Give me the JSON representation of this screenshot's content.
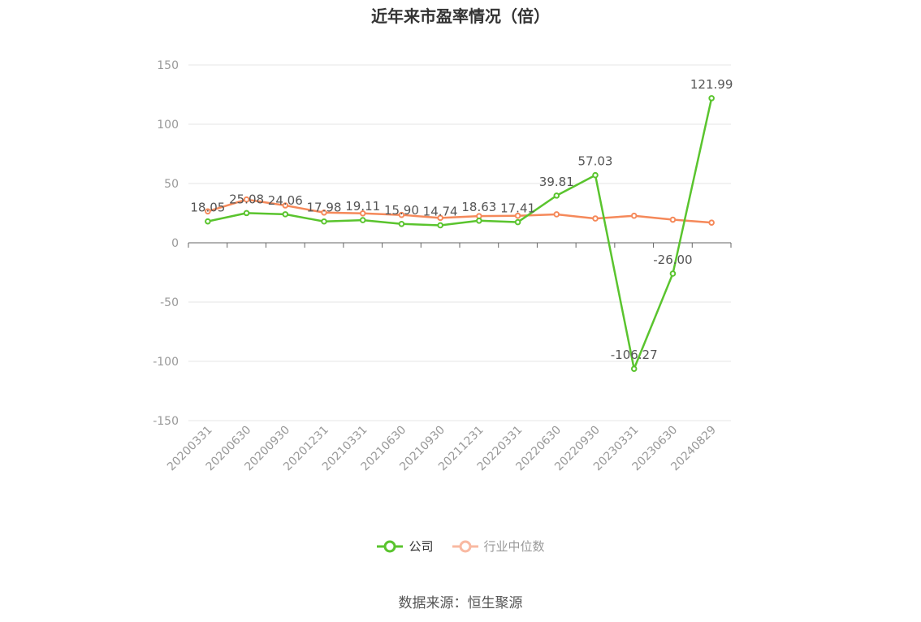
{
  "title": "近年来市盈率情况（倍）",
  "source": "数据来源：恒生聚源",
  "colors": {
    "company": "#5ac42e",
    "industry": "#f5895a",
    "industry_legend": "#f9b9a2",
    "grid": "#e6e6e6",
    "axis": "#666666"
  },
  "chart_data": {
    "type": "line",
    "title": "近年来市盈率情况（倍）",
    "xlabel": "",
    "ylabel": "",
    "ylim": [
      -150,
      150
    ],
    "yticks": [
      150,
      100,
      50,
      0,
      -50,
      -100,
      -150
    ],
    "grid": true,
    "legend_position": "bottom-center",
    "categories": [
      "20200331",
      "20200630",
      "20200930",
      "20201231",
      "20210331",
      "20210630",
      "20210930",
      "20211231",
      "20220331",
      "20220630",
      "20220930",
      "20230331",
      "20230630",
      "20240829"
    ],
    "series": [
      {
        "name": "公司",
        "values": [
          18.05,
          25.08,
          24.06,
          17.98,
          19.11,
          15.9,
          14.74,
          18.63,
          17.41,
          39.81,
          57.03,
          -106.27,
          -26.0,
          121.99
        ],
        "labels": [
          "18.05",
          "25.08",
          "24.06",
          "17.98",
          "19.11",
          "15.90",
          "14.74",
          "18.63",
          "17.41",
          "39.81",
          "57.03",
          "-106.27",
          "-26.00",
          "121.99"
        ]
      },
      {
        "name": "行业中位数",
        "values": [
          26.5,
          36.5,
          31.5,
          25.5,
          24.8,
          23.5,
          21.0,
          22.5,
          22.8,
          24.0,
          20.5,
          22.8,
          19.5,
          17.0
        ]
      }
    ]
  }
}
